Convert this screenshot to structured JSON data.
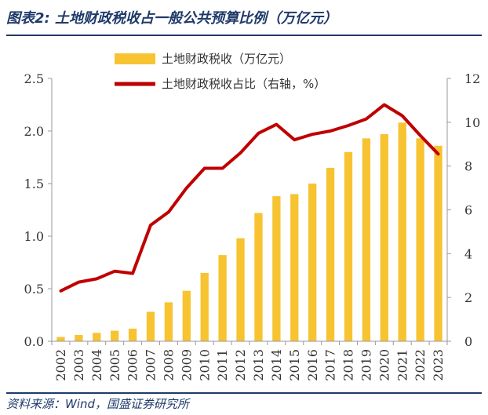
{
  "header": {
    "title": "图表2: 土地财政税收占一般公共预算比例（万亿元）"
  },
  "footer": {
    "source": "资料来源：Wind，国盛证券研究所"
  },
  "chart_data": {
    "type": "bar+line",
    "title": "图表2: 土地财政税收占一般公共预算比例（万亿元）",
    "categories": [
      "2002",
      "2003",
      "2004",
      "2005",
      "2006",
      "2007",
      "2008",
      "2009",
      "2010",
      "2011",
      "2012",
      "2013",
      "2014",
      "2015",
      "2016",
      "2017",
      "2018",
      "2019",
      "2020",
      "2021",
      "2022",
      "2023"
    ],
    "series": [
      {
        "name": "土地财政税收（万亿元）",
        "type": "bar",
        "axis": "left",
        "color": "#f7c331",
        "values": [
          0.04,
          0.06,
          0.08,
          0.1,
          0.12,
          0.28,
          0.37,
          0.48,
          0.65,
          0.82,
          0.98,
          1.22,
          1.38,
          1.4,
          1.5,
          1.65,
          1.8,
          1.93,
          1.97,
          2.08,
          1.93,
          1.86
        ]
      },
      {
        "name": "土地财政税收占比（右轴，%）",
        "type": "line",
        "axis": "right",
        "color": "#c00000",
        "values": [
          2.3,
          2.7,
          2.85,
          3.2,
          3.1,
          5.3,
          5.9,
          7.0,
          7.9,
          7.9,
          8.6,
          9.5,
          9.9,
          9.2,
          9.45,
          9.6,
          9.85,
          10.15,
          10.8,
          10.3,
          9.4,
          8.55
        ]
      }
    ],
    "y_left": {
      "range": [
        0,
        2.5
      ],
      "ticks": [
        "0.0",
        "0.5",
        "1.0",
        "1.5",
        "2.0",
        "2.5"
      ]
    },
    "y_right": {
      "range": [
        0,
        12
      ],
      "ticks": [
        "0",
        "2",
        "4",
        "6",
        "8",
        "10",
        "12"
      ]
    },
    "legend_position": "top-center",
    "grid": false
  }
}
